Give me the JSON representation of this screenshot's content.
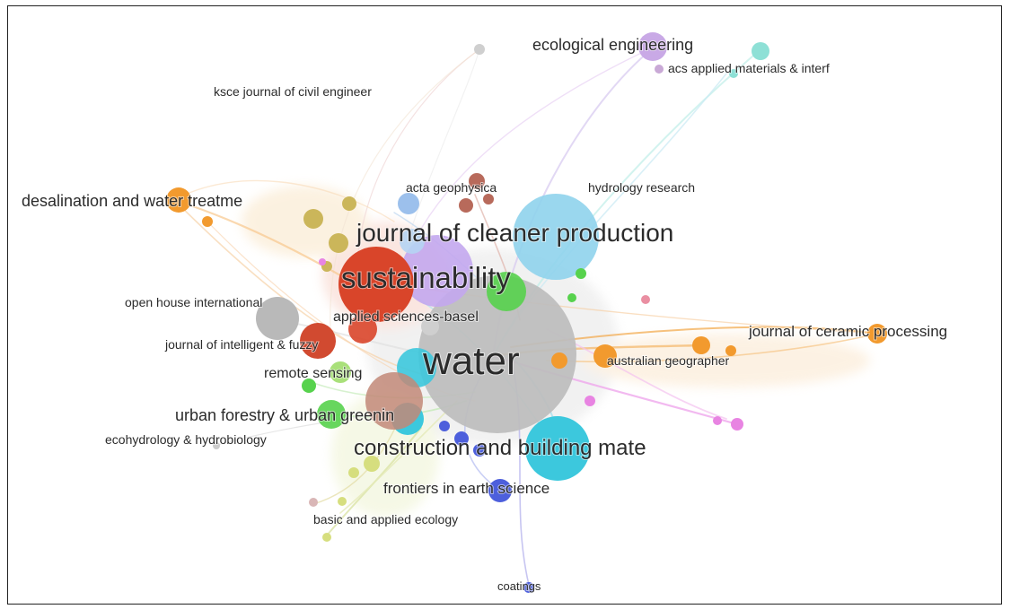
{
  "labels": {
    "water": "water",
    "sustainability": "sustainability",
    "cleaner": "journal of cleaner production",
    "construction": "construction and building mate",
    "ecological": "ecological engineering",
    "acs": "acs applied materials & interf",
    "ksce": "ksce journal of civil engineer",
    "desalination": "desalination and water treatme",
    "acta": "acta geophysica",
    "hydrology": "hydrology research",
    "openhouse": "open house international",
    "applied": "applied sciences-basel",
    "ceramic": "journal of ceramic processing",
    "intelligent": "journal of intelligent & fuzzy",
    "remote": "remote sensing",
    "australian": "australian geographer",
    "urban": "urban forestry & urban greenin",
    "ecohydrology": "ecohydrology & hydrobiology",
    "frontiers": "frontiers in earth science",
    "basic": "basic and applied ecology",
    "coatings": "coatings"
  },
  "colors": {
    "red": "#d9452a",
    "grey": "#b9b9b9",
    "cyan": "#3cc8dd",
    "skyblue": "#8fd3ec",
    "lavender": "#c3a7ee",
    "green": "#57d24d",
    "orange": "#f29a2e",
    "olive": "#cbb65a",
    "brown": "#b86a5b",
    "blue": "#4d5fdc",
    "pink": "#e884e2",
    "teal": "#8ee0d6",
    "lightgreen": "#a9e07a",
    "yellowgreen": "#d6de7e",
    "mauve": "#c9a9d6"
  }
}
